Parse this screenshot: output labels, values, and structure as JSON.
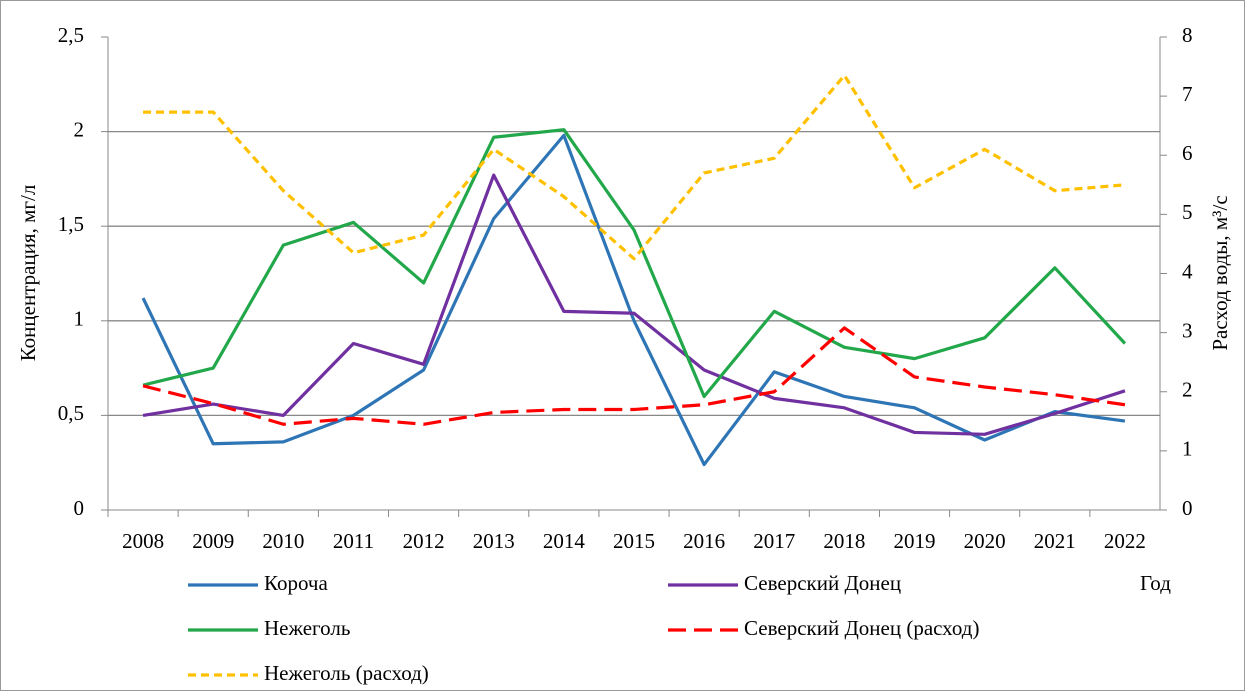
{
  "chart_data": {
    "type": "line",
    "y_label": "Концентрация, мг/л",
    "y2_label": "Расход воды, м³/с",
    "x_label": "Год",
    "categories": [
      "2008",
      "2009",
      "2010",
      "2011",
      "2012",
      "2013",
      "2014",
      "2015",
      "2016",
      "2017",
      "2018",
      "2019",
      "2020",
      "2021",
      "2022"
    ],
    "ylim": [
      0,
      2.5
    ],
    "yticks": [
      0,
      {
        "value": 0.5,
        "label": "0,5"
      },
      1,
      {
        "value": 1.5,
        "label": "1,5"
      },
      2,
      {
        "value": 2.5,
        "label": "2,5"
      }
    ],
    "y2lim": [
      0,
      8
    ],
    "y2ticks": [
      0,
      1,
      2,
      3,
      4,
      5,
      6,
      7,
      8
    ],
    "grid": true,
    "series": [
      {
        "name": "Короча",
        "color": "#2e75b6",
        "dash": "none",
        "values": [
          1.12,
          0.35,
          0.36,
          0.5,
          0.74,
          1.54,
          1.98,
          1.0,
          0.24,
          0.73,
          0.6,
          0.54,
          0.37,
          0.52,
          0.47
        ]
      },
      {
        "name": "Северский Донец",
        "color": "#7030a0",
        "dash": "none",
        "values": [
          0.5,
          0.56,
          0.5,
          0.88,
          0.77,
          1.77,
          1.05,
          1.04,
          0.74,
          0.59,
          0.54,
          0.41,
          0.4,
          0.51,
          0.63
        ]
      },
      {
        "name": "Нежеголь",
        "color": "#22a84a",
        "dash": "none",
        "values": [
          0.66,
          0.75,
          1.4,
          1.52,
          1.2,
          1.97,
          2.01,
          1.48,
          0.6,
          1.05,
          0.86,
          0.8,
          0.91,
          1.28,
          0.88
        ]
      },
      {
        "name": "Северский Донец (расход)",
        "color": "#ff0000",
        "dash": "18 8",
        "axis": "y2",
        "values": [
          2.1,
          1.8,
          1.45,
          1.55,
          1.45,
          1.65,
          1.7,
          1.7,
          1.78,
          2.0,
          3.08,
          2.25,
          2.08,
          1.95,
          1.78
        ]
      },
      {
        "name": "Нежеголь (расход)",
        "color": "#ffc000",
        "dash": "8 5",
        "axis": "y2",
        "values": [
          6.73,
          6.73,
          5.4,
          4.35,
          4.65,
          6.1,
          5.3,
          4.25,
          5.7,
          5.95,
          7.35,
          5.45,
          6.1,
          5.4,
          5.5
        ]
      }
    ]
  }
}
